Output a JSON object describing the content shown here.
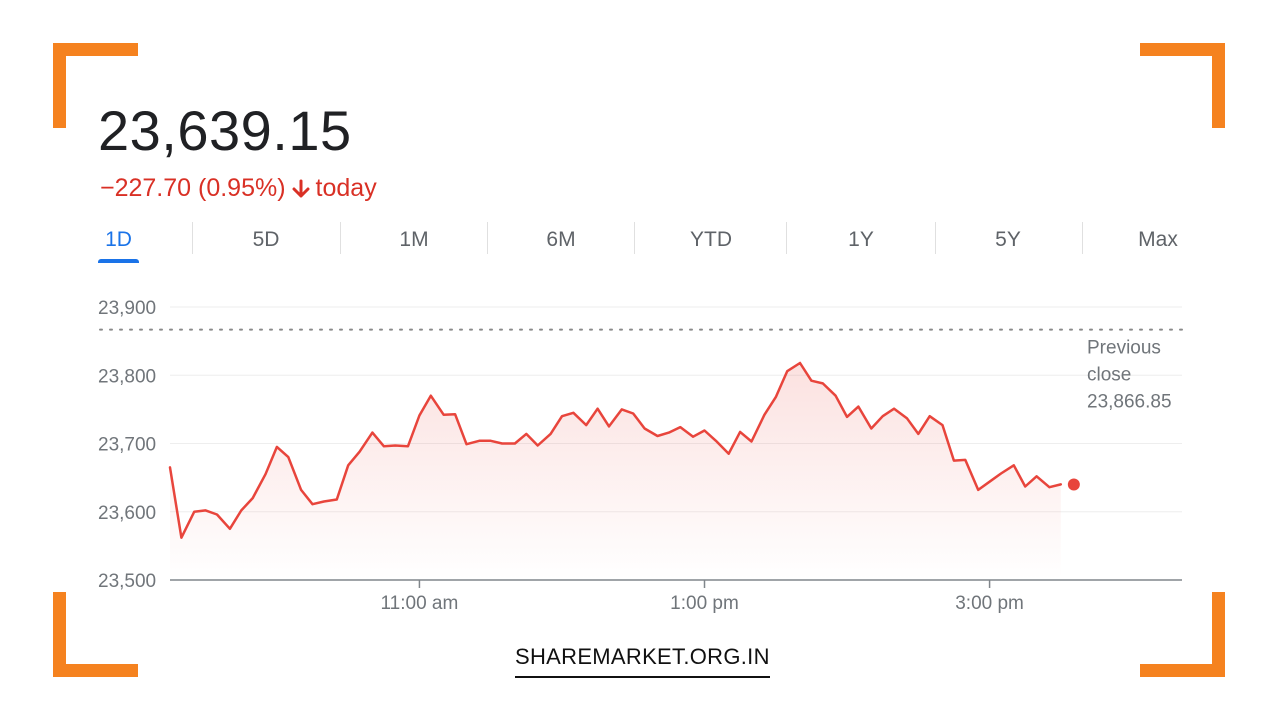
{
  "header": {
    "price": "23,639.15",
    "change": "−227.70 (0.95%)",
    "period_label": "today",
    "change_color": "#d93025"
  },
  "tabs": [
    {
      "label": "1D",
      "active": true
    },
    {
      "label": "5D",
      "active": false
    },
    {
      "label": "1M",
      "active": false
    },
    {
      "label": "6M",
      "active": false
    },
    {
      "label": "YTD",
      "active": false
    },
    {
      "label": "1Y",
      "active": false
    },
    {
      "label": "5Y",
      "active": false
    },
    {
      "label": "Max",
      "active": false
    }
  ],
  "previous_close": {
    "line1": "Previous",
    "line2": "close",
    "value": "23,866.85"
  },
  "brand": "SHAREMARKET.ORG.IN",
  "colors": {
    "accent": "#f5821f",
    "line": "#e8453c",
    "tab_active": "#1a73e8"
  },
  "chart_data": {
    "type": "line",
    "y_ticks": [
      "23,900",
      "23,800",
      "23,700",
      "23,600",
      "23,500"
    ],
    "y_tick_values": [
      23900,
      23800,
      23700,
      23600,
      23500
    ],
    "ylim": [
      23500,
      23900
    ],
    "x_ticks": [
      "11:00 am",
      "1:00 pm",
      "3:00 pm"
    ],
    "x_tick_values": [
      11.0,
      13.0,
      15.0
    ],
    "xlim": [
      9.25,
      16.35
    ],
    "previous_close": 23866.85,
    "grid": true,
    "series": [
      {
        "points": [
          [
            9.25,
            23665
          ],
          [
            9.33,
            23562
          ],
          [
            9.42,
            23600
          ],
          [
            9.5,
            23602
          ],
          [
            9.58,
            23596
          ],
          [
            9.67,
            23575
          ],
          [
            9.75,
            23602
          ],
          [
            9.83,
            23620
          ],
          [
            9.92,
            23655
          ],
          [
            10.0,
            23695
          ],
          [
            10.08,
            23680
          ],
          [
            10.17,
            23632
          ],
          [
            10.25,
            23611
          ],
          [
            10.33,
            23615
          ],
          [
            10.42,
            23618
          ],
          [
            10.5,
            23668
          ],
          [
            10.58,
            23688
          ],
          [
            10.67,
            23716
          ],
          [
            10.75,
            23696
          ],
          [
            10.83,
            23697
          ],
          [
            10.92,
            23696
          ],
          [
            11.0,
            23741
          ],
          [
            11.08,
            23770
          ],
          [
            11.17,
            23742
          ],
          [
            11.25,
            23743
          ],
          [
            11.33,
            23699
          ],
          [
            11.42,
            23704
          ],
          [
            11.5,
            23704
          ],
          [
            11.58,
            23700
          ],
          [
            11.67,
            23700
          ],
          [
            11.75,
            23714
          ],
          [
            11.83,
            23697
          ],
          [
            11.92,
            23714
          ],
          [
            12.0,
            23740
          ],
          [
            12.08,
            23745
          ],
          [
            12.17,
            23727
          ],
          [
            12.25,
            23751
          ],
          [
            12.33,
            23725
          ],
          [
            12.42,
            23750
          ],
          [
            12.5,
            23744
          ],
          [
            12.58,
            23722
          ],
          [
            12.67,
            23711
          ],
          [
            12.75,
            23716
          ],
          [
            12.83,
            23724
          ],
          [
            12.92,
            23710
          ],
          [
            13.0,
            23719
          ],
          [
            13.08,
            23704
          ],
          [
            13.17,
            23685
          ],
          [
            13.25,
            23717
          ],
          [
            13.33,
            23703
          ],
          [
            13.42,
            23742
          ],
          [
            13.5,
            23768
          ],
          [
            13.58,
            23806
          ],
          [
            13.67,
            23818
          ],
          [
            13.75,
            23792
          ],
          [
            13.83,
            23788
          ],
          [
            13.92,
            23770
          ],
          [
            14.0,
            23739
          ],
          [
            14.08,
            23754
          ],
          [
            14.17,
            23722
          ],
          [
            14.25,
            23740
          ],
          [
            14.33,
            23751
          ],
          [
            14.42,
            23737
          ],
          [
            14.5,
            23714
          ],
          [
            14.58,
            23740
          ],
          [
            14.67,
            23727
          ],
          [
            14.75,
            23675
          ],
          [
            14.83,
            23676
          ],
          [
            14.92,
            23632
          ],
          [
            15.0,
            23644
          ],
          [
            15.08,
            23656
          ],
          [
            15.17,
            23668
          ],
          [
            15.25,
            23637
          ],
          [
            15.33,
            23652
          ],
          [
            15.42,
            23636
          ],
          [
            15.5,
            23640
          ]
        ]
      }
    ]
  }
}
